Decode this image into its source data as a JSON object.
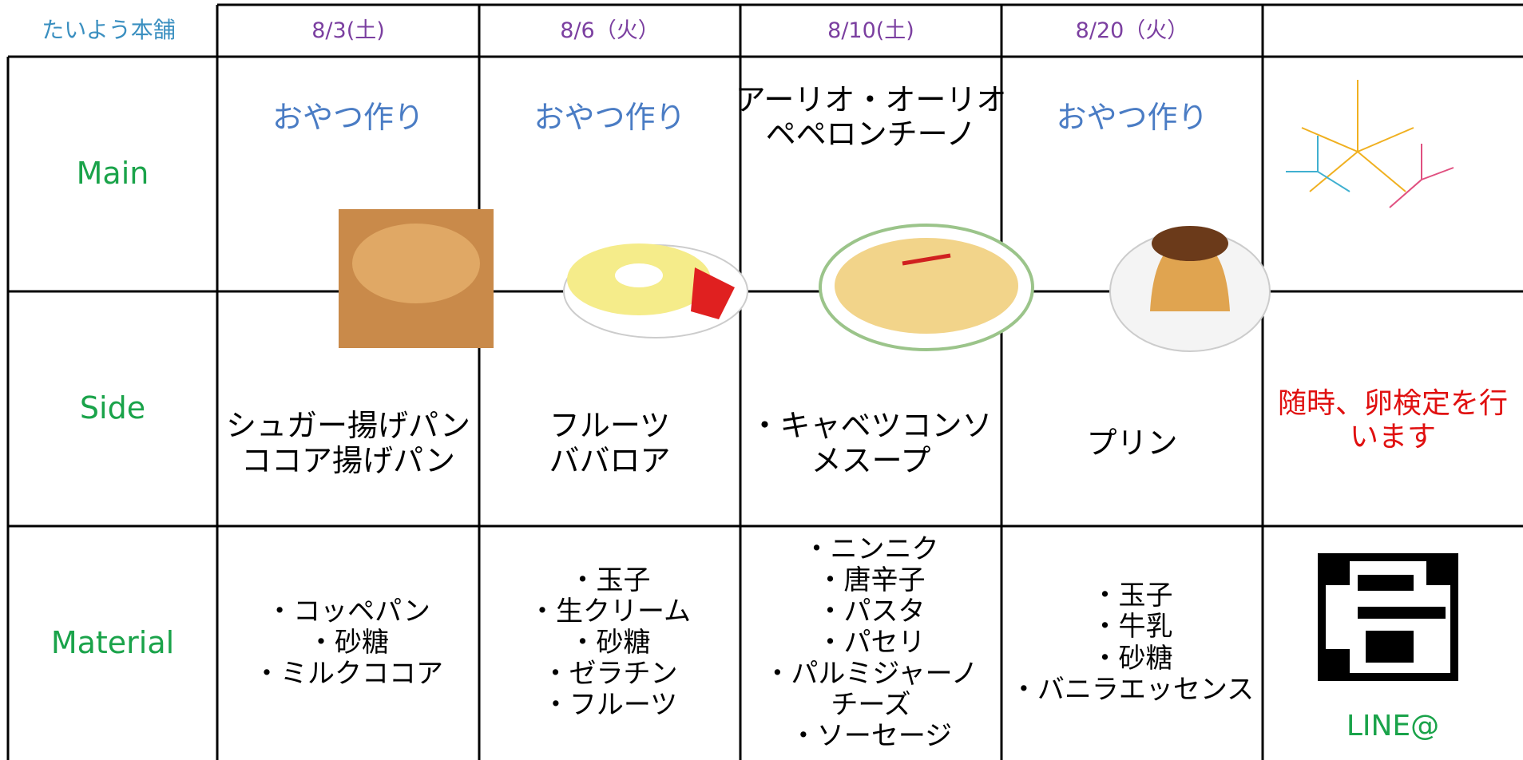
{
  "header": {
    "logo": "たいよう本舗",
    "dates": [
      "8/3(土)",
      "8/6（火）",
      "8/10(土)",
      "8/20（火）"
    ]
  },
  "rows": [
    {
      "label": "Main",
      "cells": [
        [
          "おやつ作り"
        ],
        [
          "おやつ作り"
        ],
        [
          "アーリオ・オーリオ",
          "ペペロンチーノ"
        ],
        [
          "おやつ作り"
        ]
      ]
    },
    {
      "label": "Side",
      "cells": [
        [
          "シュガー揚げパン",
          "ココア揚げパン"
        ],
        [
          "フルーツ",
          "ババロア"
        ],
        [
          "・キャベツコンソ",
          "メスープ"
        ],
        [
          "プリン"
        ]
      ],
      "note": [
        "随時、卵検定を行",
        "います"
      ]
    },
    {
      "label": "Material",
      "cells": [
        [
          "・コッペパン",
          "・砂糖",
          "・ミルクココア"
        ],
        [
          "・玉子",
          "・生クリーム",
          "・砂糖",
          "・ゼラチン",
          "・フルーツ"
        ],
        [
          "・ニンニク",
          "・唐辛子",
          "・パスタ",
          "・パセリ",
          "・パルミジャーノ",
          "チーズ",
          "・ソーセージ"
        ],
        [
          "・玉子",
          "・牛乳",
          "・砂糖",
          "・バニラエッセンス"
        ]
      ],
      "qr_label": "LINE@"
    }
  ]
}
